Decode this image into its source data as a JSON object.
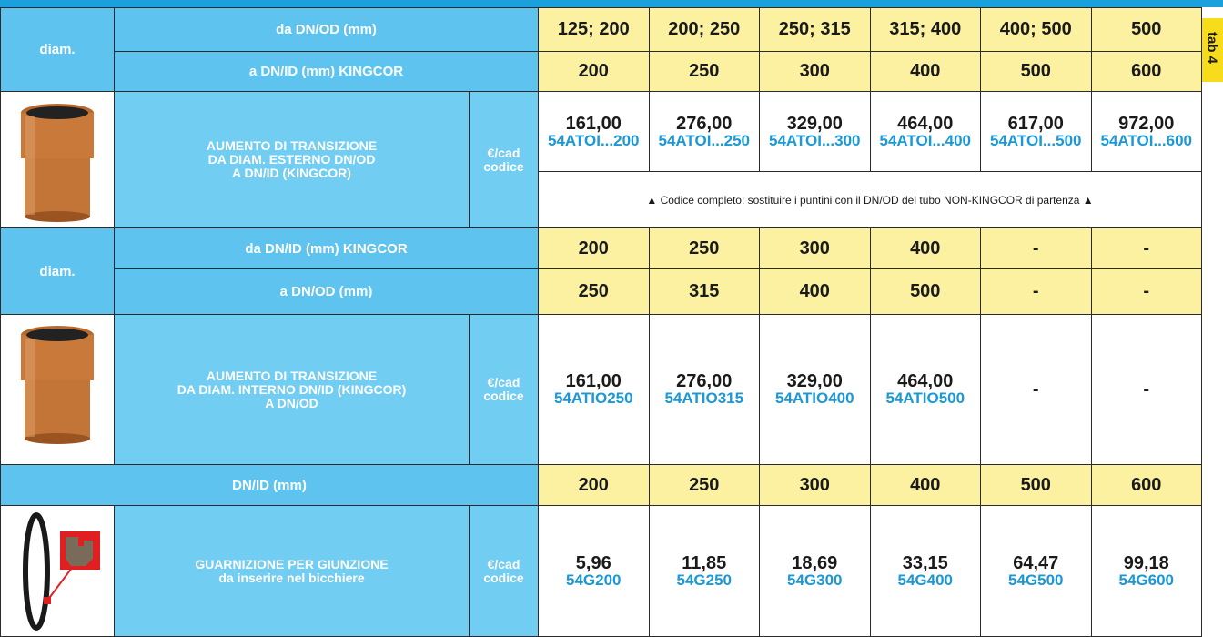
{
  "tab": "tab 4",
  "section1": {
    "diam": "diam.",
    "row_from": {
      "label": "da DN/OD (mm)",
      "values": [
        "125; 200",
        "200; 250",
        "250; 315",
        "315; 400",
        "400; 500",
        "500"
      ]
    },
    "row_to": {
      "label": "a DN/ID (mm) KINGCOR",
      "values": [
        "200",
        "250",
        "300",
        "400",
        "500",
        "600"
      ]
    },
    "product": {
      "name_lines": [
        "AUMENTO DI TRANSIZIONE",
        "DA DIAM. ESTERNO DN/OD",
        "A DN/ID (KINGCOR)"
      ],
      "unit": "€/cad",
      "code_label": "codice",
      "prices": [
        "161,00",
        "276,00",
        "329,00",
        "464,00",
        "617,00",
        "972,00"
      ],
      "codes": [
        "54ATOI...200",
        "54ATOI...250",
        "54ATOI...300",
        "54ATOI...400",
        "54ATOI...500",
        "54ATOI...600"
      ],
      "note": "▲ Codice completo: sostituire i puntini con il DN/OD del tubo NON-KINGCOR di partenza ▲"
    }
  },
  "section2": {
    "diam": "diam.",
    "row_from": {
      "label": "da DN/ID (mm) KINGCOR",
      "values": [
        "200",
        "250",
        "300",
        "400",
        "-",
        "-"
      ]
    },
    "row_to": {
      "label": "a DN/OD (mm)",
      "values": [
        "250",
        "315",
        "400",
        "500",
        "-",
        "-"
      ]
    },
    "product": {
      "name_lines": [
        "AUMENTO DI TRANSIZIONE",
        "DA DIAM. INTERNO DN/ID (KINGCOR)",
        "A DN/OD"
      ],
      "unit": "€/cad",
      "code_label": "codice",
      "prices": [
        "161,00",
        "276,00",
        "329,00",
        "464,00"
      ],
      "codes": [
        "54ATIO250",
        "54ATIO315",
        "54ATIO400",
        "54ATIO500"
      ],
      "empty": [
        "-",
        "-"
      ]
    }
  },
  "section3": {
    "row": {
      "label": "DN/ID (mm)",
      "values": [
        "200",
        "250",
        "300",
        "400",
        "500",
        "600"
      ]
    },
    "product": {
      "name_lines": [
        "GUARNIZIONE PER GIUNZIONE",
        "da inserire nel bicchiere"
      ],
      "unit": "€/cad",
      "code_label": "codice",
      "prices": [
        "5,96",
        "11,85",
        "18,69",
        "33,15",
        "64,47",
        "99,18"
      ],
      "codes": [
        "54G200",
        "54G250",
        "54G300",
        "54G400",
        "54G500",
        "54G600"
      ]
    }
  }
}
